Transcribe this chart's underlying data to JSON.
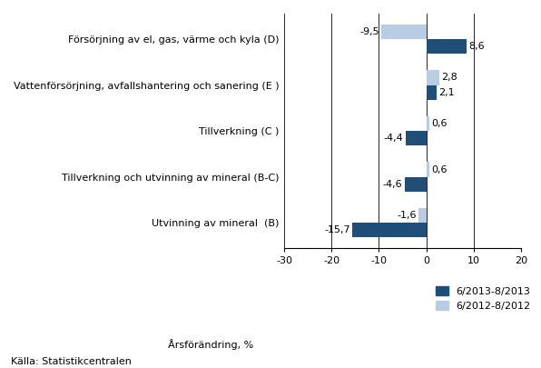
{
  "categories": [
    "Försörjning av el, gas, värme och kyla (D)",
    "Vattenförsörjning, avfallshantering och sanering (E )",
    "Tillverkning (C )",
    "Tillverkning och utvinning av mineral (B-C)",
    "Utvinning av mineral  (B)"
  ],
  "series1_values": [
    8.6,
    2.1,
    -4.4,
    -4.6,
    -15.7
  ],
  "series2_values": [
    -9.5,
    2.8,
    0.6,
    0.6,
    -1.6
  ],
  "series1_label": "6/2013-8/2013",
  "series2_label": "6/2012-8/2012",
  "series1_color": "#1f4e79",
  "series2_color": "#b8cce4",
  "xlabel": "Årsförändring, %",
  "xlim": [
    -30,
    20
  ],
  "xticks": [
    -30,
    -20,
    -10,
    0,
    10,
    20
  ],
  "label_fontsize": 8,
  "tick_fontsize": 8,
  "bar_height": 0.32,
  "footnote": "Källa: Statistikcentralen",
  "background_color": "#ffffff"
}
